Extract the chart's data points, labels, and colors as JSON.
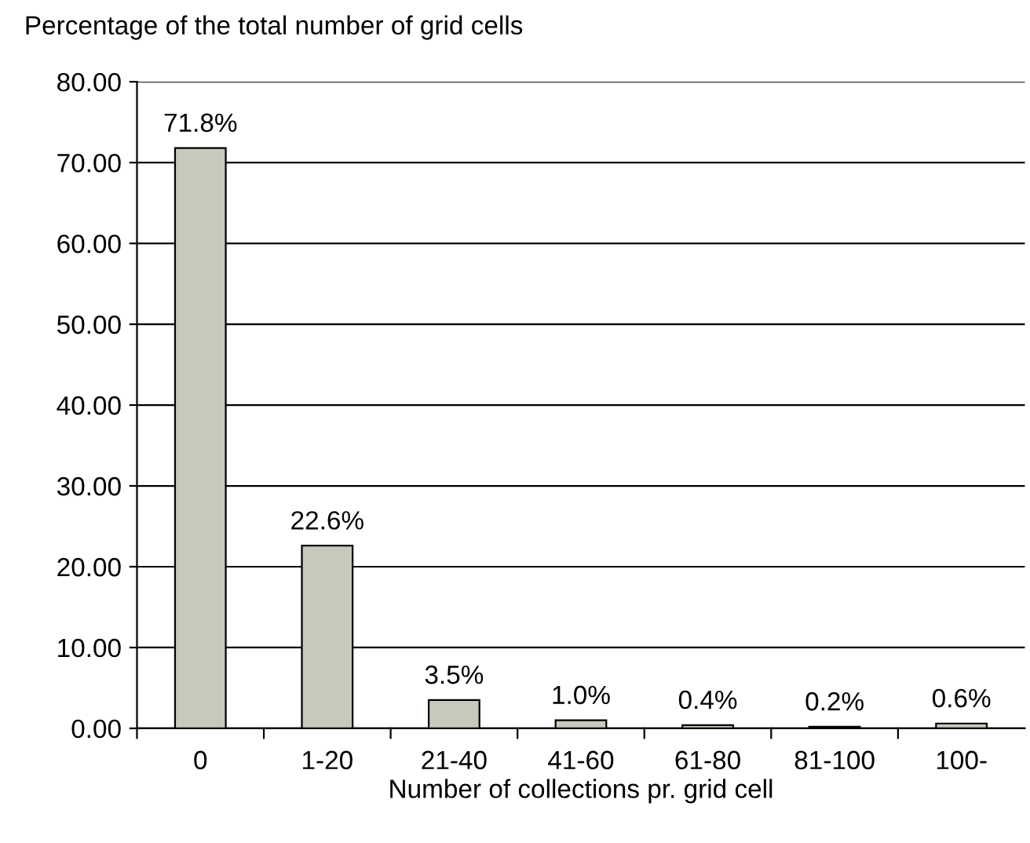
{
  "chart_data": {
    "type": "bar",
    "ylabel": "Percentage of the total number of grid cells",
    "xlabel": "Number of collections pr. grid cell",
    "categories": [
      "0",
      "1-20",
      "21-40",
      "41-60",
      "61-80",
      "81-100",
      "100-"
    ],
    "values": [
      71.8,
      22.6,
      3.5,
      1.0,
      0.4,
      0.2,
      0.6
    ],
    "value_labels": [
      "71.8%",
      "22.6%",
      "3.5%",
      "1.0%",
      "0.4%",
      "0.2%",
      "0.6%"
    ],
    "color": "#c8c8bc",
    "ylim": [
      0,
      80
    ],
    "yticks": [
      {
        "value": 0,
        "label": "0.00"
      },
      {
        "value": 10,
        "label": "10.00"
      },
      {
        "value": 20,
        "label": "20.00"
      },
      {
        "value": 30,
        "label": "30.00"
      },
      {
        "value": 40,
        "label": "40.00"
      },
      {
        "value": 50,
        "label": "50.00"
      },
      {
        "value": 60,
        "label": "60.00"
      },
      {
        "value": 70,
        "label": "70.00"
      },
      {
        "value": 80,
        "label": "80.00"
      }
    ],
    "grid": "y",
    "legend": false
  }
}
